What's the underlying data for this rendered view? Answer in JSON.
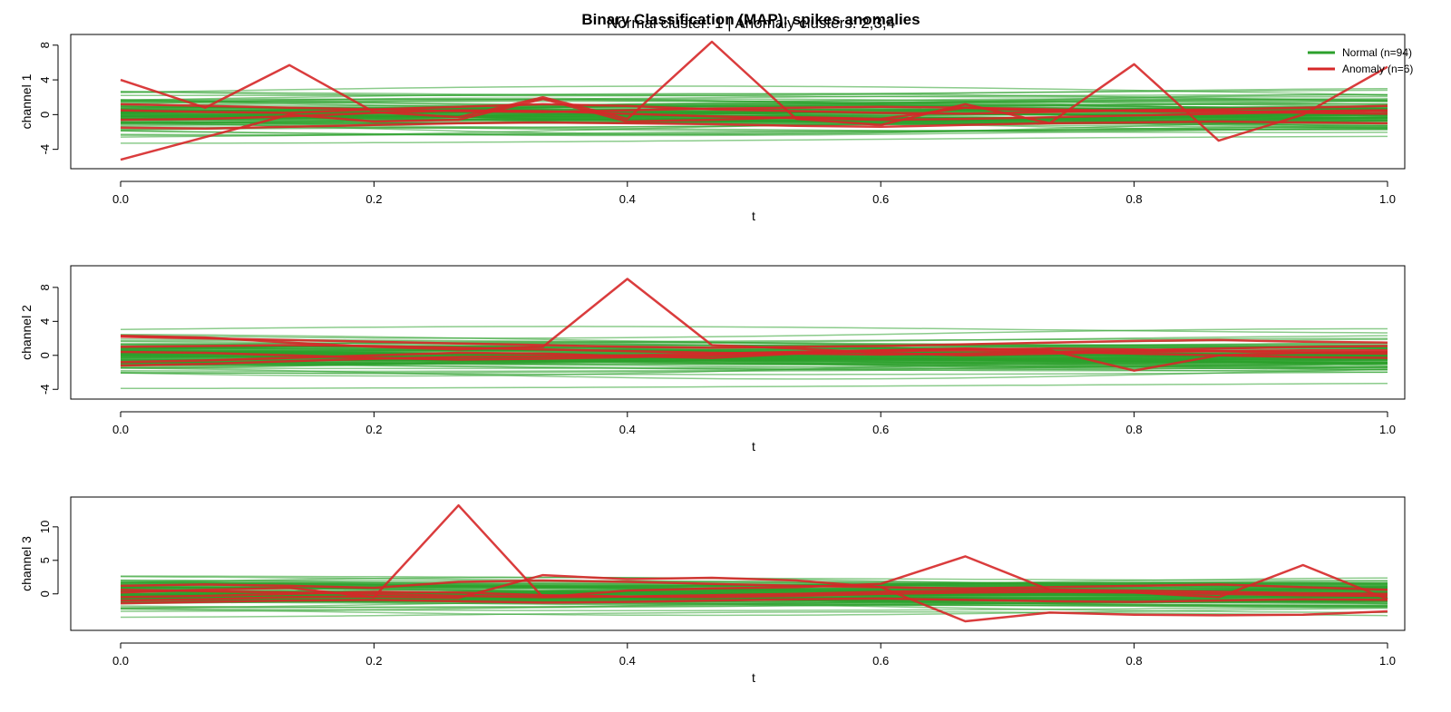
{
  "chart_data": {
    "type": "line",
    "title": "Binary Classification (MAP): spikes anomalies",
    "subtitle": "Normal cluster: 1 | Anomaly clusters: 2,3,4",
    "legend": {
      "placement": "top-right",
      "entries": [
        {
          "label": "Normal (n=94)",
          "color": "#2ca02c"
        },
        {
          "label": "Anomaly (n=6)",
          "color": "#d62728"
        }
      ]
    },
    "colors": {
      "normal": "#2ca02c",
      "anomaly": "#d62728"
    },
    "x": [
      0,
      0.0667,
      0.1333,
      0.2,
      0.2667,
      0.3333,
      0.4,
      0.4667,
      0.5333,
      0.6,
      0.6667,
      0.7333,
      0.8,
      0.8667,
      0.9333,
      1.0
    ],
    "panels": [
      {
        "ylabel": "channel 1",
        "xlabel": "t",
        "xlim": [
          0,
          1
        ],
        "ylim": [
          -5.5,
          8.5
        ],
        "xticks": [
          0,
          0.2,
          0.4,
          0.6,
          0.8,
          1.0
        ],
        "xtick_labels": [
          "0.0",
          "0.2",
          "0.4",
          "0.6",
          "0.8",
          "1.0"
        ],
        "yticks": [
          -4,
          0,
          4,
          8
        ],
        "ytick_labels": [
          "-4",
          "0",
          "4",
          "8"
        ],
        "normal_band": [
          -2.6,
          2.6
        ],
        "normal_extremes": [
          -3.2,
          2.9
        ],
        "anomaly_series": [
          {
            "values": [
              4.0,
              0.8,
              5.7,
              0.3,
              -0.3,
              2.0,
              -0.5,
              8.4,
              -0.5,
              -1.2,
              1.2,
              -1.0,
              5.8,
              -3.0,
              0.0,
              5.5
            ]
          },
          {
            "values": [
              -5.2,
              -2.6,
              0.0,
              -0.8,
              -0.6,
              1.8,
              -0.8,
              -0.6,
              -0.3,
              -0.5,
              0.8,
              0.4,
              0.5,
              0.6,
              0.8,
              1.0
            ]
          },
          {
            "values": [
              0.5,
              0.3,
              0.2,
              0.6,
              0.9,
              1.2,
              1.0,
              0.6,
              0.4,
              0.2,
              0.1,
              0.3,
              0.5,
              0.4,
              0.2,
              0.1
            ]
          },
          {
            "values": [
              -1.5,
              -1.6,
              -1.4,
              -1.2,
              -1.0,
              -0.9,
              -1.0,
              -1.1,
              -1.3,
              -1.4,
              -1.2,
              -1.0,
              -0.9,
              -0.8,
              -0.9,
              -1.0
            ]
          },
          {
            "values": [
              -0.6,
              -0.5,
              -0.2,
              0.2,
              0.5,
              0.4,
              0.1,
              -0.2,
              -0.4,
              -0.6,
              -0.5,
              -0.3,
              -0.1,
              0.1,
              0.3,
              0.4
            ]
          },
          {
            "values": [
              1.2,
              1.0,
              0.8,
              0.6,
              0.4,
              0.3,
              0.5,
              0.7,
              0.8,
              0.9,
              0.8,
              0.6,
              0.4,
              0.3,
              0.4,
              0.5
            ]
          }
        ]
      },
      {
        "ylabel": "channel 2",
        "xlabel": "t",
        "xlim": [
          0,
          1
        ],
        "ylim": [
          -4.4,
          9.8
        ],
        "xticks": [
          0,
          0.2,
          0.4,
          0.6,
          0.8,
          1.0
        ],
        "xtick_labels": [
          "0.0",
          "0.2",
          "0.4",
          "0.6",
          "0.8",
          "1.0"
        ],
        "yticks": [
          -4,
          0,
          4,
          8
        ],
        "ytick_labels": [
          "-4",
          "0",
          "4",
          "8"
        ],
        "normal_band": [
          -2.5,
          2.5
        ],
        "normal_extremes": [
          -3.8,
          3.3
        ],
        "anomaly_series": [
          {
            "values": [
              2.3,
              2.1,
              1.5,
              1.0,
              0.7,
              1.0,
              9.0,
              1.2,
              0.8,
              0.3,
              0.0,
              0.2,
              0.4,
              0.5,
              0.6,
              0.6
            ]
          },
          {
            "values": [
              -0.8,
              -0.6,
              -0.3,
              0.0,
              0.3,
              0.2,
              -0.1,
              -0.3,
              0.2,
              0.6,
              0.8,
              0.6,
              -1.8,
              0.0,
              0.3,
              0.4
            ]
          },
          {
            "values": [
              2.2,
              2.0,
              1.8,
              1.6,
              1.4,
              1.2,
              1.0,
              0.9,
              1.0,
              1.1,
              1.3,
              1.5,
              1.7,
              1.8,
              1.6,
              1.5
            ]
          },
          {
            "values": [
              -1.2,
              -1.0,
              -0.7,
              -0.4,
              -0.2,
              -0.1,
              0.0,
              0.2,
              0.4,
              0.6,
              0.7,
              0.8,
              0.7,
              0.5,
              0.3,
              0.2
            ]
          },
          {
            "values": [
              0.4,
              0.3,
              0.0,
              -0.3,
              -0.5,
              -0.4,
              -0.2,
              0.0,
              0.3,
              0.5,
              0.6,
              0.4,
              0.2,
              0.0,
              -0.2,
              -0.3
            ]
          },
          {
            "values": [
              1.0,
              1.1,
              1.2,
              1.1,
              0.9,
              0.7,
              0.5,
              0.3,
              0.2,
              0.1,
              0.2,
              0.4,
              0.6,
              0.8,
              1.0,
              1.1
            ]
          }
        ]
      },
      {
        "ylabel": "channel 3",
        "xlabel": "t",
        "xlim": [
          0,
          1
        ],
        "ylim": [
          -4.5,
          13.5
        ],
        "xticks": [
          0,
          0.2,
          0.4,
          0.6,
          0.8,
          1.0
        ],
        "xtick_labels": [
          "0.0",
          "0.2",
          "0.4",
          "0.6",
          "0.8",
          "1.0"
        ],
        "yticks": [
          0,
          5,
          10
        ],
        "ytick_labels": [
          "0",
          "5",
          "10"
        ],
        "normal_band": [
          -2.6,
          2.4
        ],
        "normal_extremes": [
          -3.4,
          2.6
        ],
        "anomaly_series": [
          {
            "values": [
              0.2,
              0.6,
              0.9,
              -0.5,
              13.2,
              -0.5,
              0.5,
              0.8,
              1.0,
              1.5,
              5.6,
              0.6,
              0.2,
              -0.5,
              4.3,
              -0.8
            ]
          },
          {
            "values": [
              -1.0,
              -0.8,
              -0.5,
              -0.4,
              -0.6,
              2.8,
              2.2,
              2.4,
              2.0,
              1.0,
              -4.1,
              -2.8,
              -3.1,
              -3.2,
              -3.1,
              -2.6
            ]
          },
          {
            "values": [
              1.2,
              1.4,
              1.2,
              0.9,
              1.8,
              2.0,
              1.8,
              1.5,
              1.2,
              1.0,
              0.8,
              1.0,
              1.2,
              1.4,
              1.0,
              0.6
            ]
          },
          {
            "values": [
              -0.5,
              -0.3,
              0.0,
              0.3,
              0.2,
              -0.2,
              -0.4,
              -0.5,
              -0.3,
              0.0,
              0.2,
              0.3,
              0.2,
              0.0,
              -0.2,
              -0.3
            ]
          },
          {
            "values": [
              0.6,
              0.4,
              0.2,
              0.0,
              -0.3,
              -0.5,
              -0.4,
              -0.2,
              0.0,
              0.3,
              0.5,
              0.6,
              0.5,
              0.3,
              0.1,
              0.0
            ]
          },
          {
            "values": [
              -1.4,
              -1.2,
              -1.0,
              -0.9,
              -1.1,
              -1.3,
              -1.2,
              -1.0,
              -0.8,
              -0.7,
              -0.9,
              -1.1,
              -1.2,
              -1.0,
              -0.8,
              -0.9
            ]
          }
        ]
      }
    ]
  }
}
